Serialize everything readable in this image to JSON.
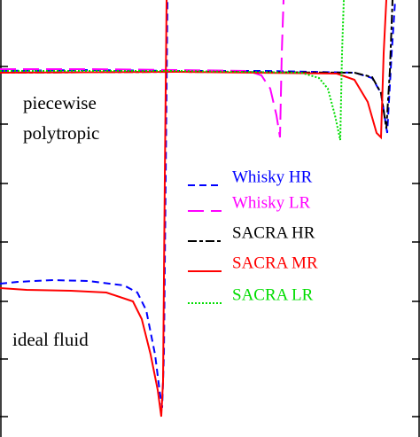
{
  "chart_data": {
    "type": "line",
    "annotations": [
      "piecewise",
      "polytropic",
      "ideal fluid"
    ],
    "xlim": [
      0,
      474
    ],
    "ylim": [
      0,
      493
    ],
    "yticks": [
      23,
      88,
      153,
      220,
      286,
      353,
      418
    ],
    "series": [
      {
        "name": "Whisky HR",
        "color": "#0000ff",
        "dash": "8,5",
        "x": [
          0,
          20,
          60,
          100,
          140,
          155,
          165,
          175,
          180,
          183,
          185,
          187,
          189,
          null,
          0,
          100,
          200,
          300,
          400,
          420,
          430,
          437,
          442,
          446
        ],
        "values": [
          173,
          175,
          177,
          176,
          171,
          163,
          143,
          93,
          53,
          33,
          93,
          293,
          493,
          null,
          413,
          414,
          413,
          413,
          411,
          405,
          388,
          343,
          433,
          493
        ]
      },
      {
        "name": "Whisky LR",
        "color": "#ff00ff",
        "dash": "18,8",
        "x": [
          0,
          100,
          200,
          280,
          295,
          305,
          312,
          316,
          318,
          320
        ],
        "values": [
          415,
          415,
          414,
          413,
          408,
          393,
          363,
          338,
          433,
          493
        ]
      },
      {
        "name": "SACRA HR",
        "color": "#000000",
        "dash": "10,3,4,3",
        "x": [
          0,
          200,
          400,
          420,
          430,
          436,
          440,
          443
        ],
        "values": [
          411,
          412,
          411,
          406,
          388,
          348,
          413,
          493
        ]
      },
      {
        "name": "SACRA MR",
        "color": "#ff0000",
        "dash": "none",
        "x": [
          0,
          30,
          80,
          120,
          150,
          160,
          170,
          178,
          182,
          184,
          186,
          188,
          null,
          0,
          200,
          380,
          400,
          415,
          425,
          430,
          433,
          436
        ],
        "values": [
          168,
          166,
          165,
          163,
          153,
          133,
          93,
          53,
          23,
          63,
          293,
          493,
          null,
          411,
          412,
          410,
          403,
          378,
          343,
          338,
          433,
          493
        ]
      },
      {
        "name": "SACRA LR",
        "color": "#00dd00",
        "dash": "2,2",
        "x": [
          0,
          200,
          340,
          360,
          370,
          378,
          384,
          386,
          388
        ],
        "values": [
          413,
          413,
          411,
          405,
          393,
          363,
          335,
          433,
          493
        ]
      }
    ]
  }
}
